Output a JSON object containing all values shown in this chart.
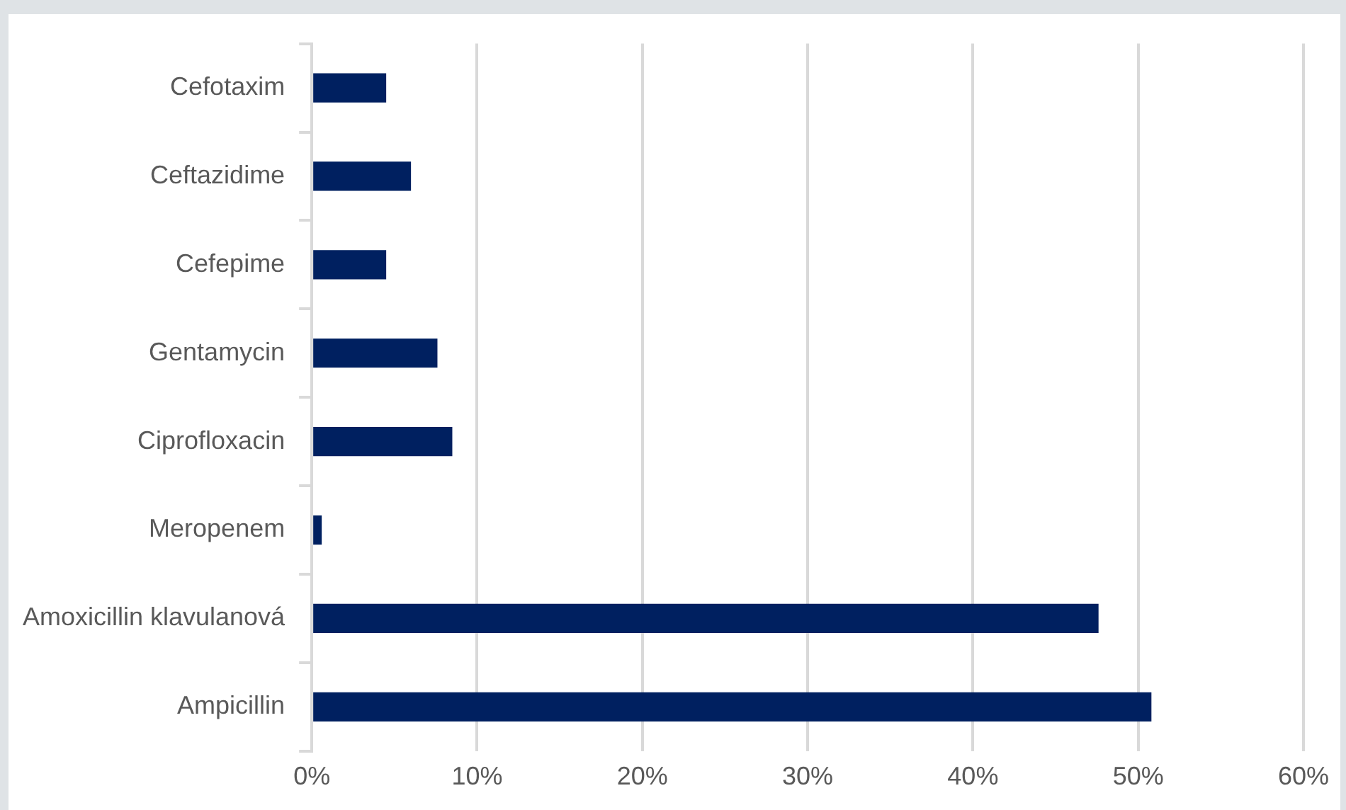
{
  "chart_data": {
    "type": "bar",
    "orientation": "horizontal",
    "categories": [
      "Cefotaxim",
      "Ceftazidime",
      "Cefepime",
      "Gentamycin",
      "Ciprofloxacin",
      "Meropenem",
      "Amoxicillin klavulanová",
      "Ampicillin"
    ],
    "values": [
      4.5,
      6.0,
      4.5,
      7.6,
      8.5,
      0.6,
      47.6,
      50.8
    ],
    "color": "#002060",
    "xlim": [
      0,
      60
    ],
    "xticks": [
      {
        "value": 0,
        "label": "0%"
      },
      {
        "value": 10,
        "label": "10%"
      },
      {
        "value": 20,
        "label": "20%"
      },
      {
        "value": 30,
        "label": "30%"
      },
      {
        "value": 40,
        "label": "40%"
      },
      {
        "value": 50,
        "label": "50%"
      },
      {
        "value": 60,
        "label": "60%"
      }
    ],
    "grid": "x",
    "legend": false
  }
}
